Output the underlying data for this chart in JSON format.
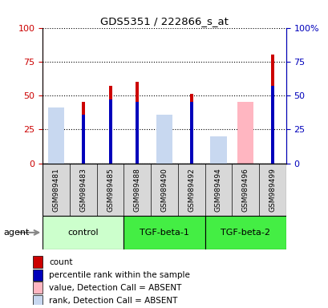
{
  "title": "GDS5351 / 222866_s_at",
  "samples": [
    "GSM989481",
    "GSM989483",
    "GSM989485",
    "GSM989488",
    "GSM989490",
    "GSM989492",
    "GSM989494",
    "GSM989496",
    "GSM989499"
  ],
  "groups": [
    {
      "name": "control",
      "indices": [
        0,
        1,
        2
      ],
      "fc": "#ccffcc"
    },
    {
      "name": "TGF-beta-1",
      "indices": [
        3,
        4,
        5
      ],
      "fc": "#44dd44"
    },
    {
      "name": "TGF-beta-2",
      "indices": [
        6,
        7,
        8
      ],
      "fc": "#44dd44"
    }
  ],
  "count_values": [
    0,
    45,
    57,
    60,
    0,
    51,
    0,
    0,
    80
  ],
  "percentile_values": [
    0,
    36,
    47,
    45,
    0,
    45,
    0,
    0,
    57
  ],
  "absent_value_bars": [
    40,
    0,
    0,
    0,
    34,
    0,
    11,
    45,
    0
  ],
  "absent_rank_bars": [
    41,
    0,
    0,
    0,
    36,
    0,
    20,
    0,
    0
  ],
  "count_color": "#cc0000",
  "percentile_color": "#0000bb",
  "absent_value_color": "#ffb6c1",
  "absent_rank_color": "#c8d8f0",
  "left_axis_color": "#cc0000",
  "right_axis_color": "#0000bb",
  "ylim": [
    0,
    100
  ],
  "yticks": [
    0,
    25,
    50,
    75,
    100
  ],
  "right_yticklabels": [
    "0",
    "25",
    "50",
    "75",
    "100%"
  ],
  "legend_items": [
    {
      "color": "#cc0000",
      "label": "count"
    },
    {
      "color": "#0000bb",
      "label": "percentile rank within the sample"
    },
    {
      "color": "#ffb6c1",
      "label": "value, Detection Call = ABSENT"
    },
    {
      "color": "#c8d8f0",
      "label": "rank, Detection Call = ABSENT"
    }
  ],
  "sample_box_color": "#d8d8d8",
  "narrow_bar_width": 0.12,
  "wide_bar_width": 0.6
}
